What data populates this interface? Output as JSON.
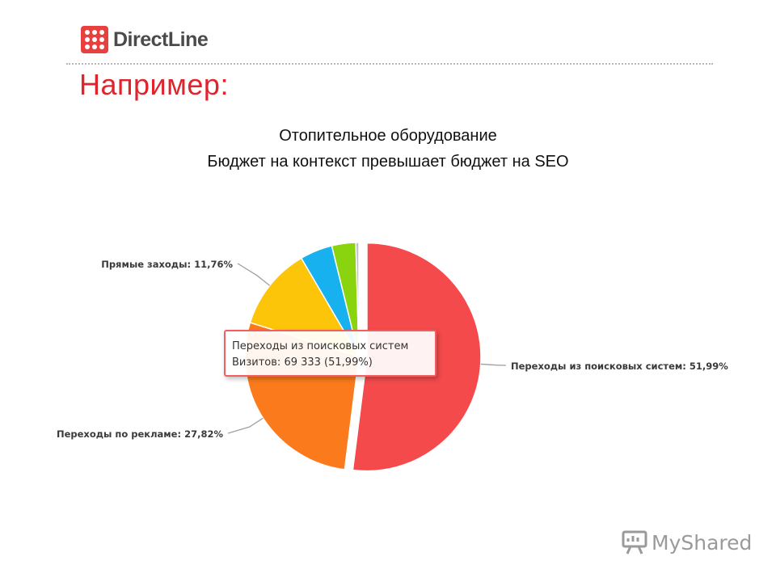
{
  "header": {
    "logo_text": "DirectLine",
    "title": "Например:"
  },
  "subtitle": {
    "line1": "Отопительное оборудование",
    "line2": "Бюджет на контекст превышает бюджет на SEO"
  },
  "tooltip": {
    "title": "Переходы из поисковых систем",
    "value_label": "Визитов:",
    "value_text": "69 333 (51,99%)"
  },
  "watermark": {
    "text": "MyShared",
    "icon": "presentation-board-icon"
  },
  "colors": {
    "title_red": "#e0242d",
    "logo_red": "#e8403f"
  },
  "chart_data": {
    "type": "pie",
    "title": "",
    "slices": [
      {
        "name": "Переходы из поисковых систем",
        "value": 51.99,
        "label": "Переходы из поисковых систем: 51,99%",
        "color": "#f44a4c",
        "labeled": true
      },
      {
        "name": "Переходы по рекламе",
        "value": 27.82,
        "label": "Переходы по рекламе: 27,82%",
        "color": "#fb7a1b",
        "labeled": true
      },
      {
        "name": "Прямые заходы",
        "value": 11.76,
        "label": "Прямые заходы: 11,76%",
        "color": "#fdc50a",
        "labeled": true
      },
      {
        "name": "",
        "value": 4.6,
        "label": "",
        "color": "#18b1f0",
        "labeled": false
      },
      {
        "name": "",
        "value": 3.4,
        "label": "",
        "color": "#8ad40f",
        "labeled": false
      },
      {
        "name": "",
        "value": 0.43,
        "label": "",
        "color": "#c0c0c0",
        "labeled": false
      }
    ],
    "exploded_slice": "Переходы из поисковых систем",
    "legend": "none",
    "data_labels": "outside"
  }
}
